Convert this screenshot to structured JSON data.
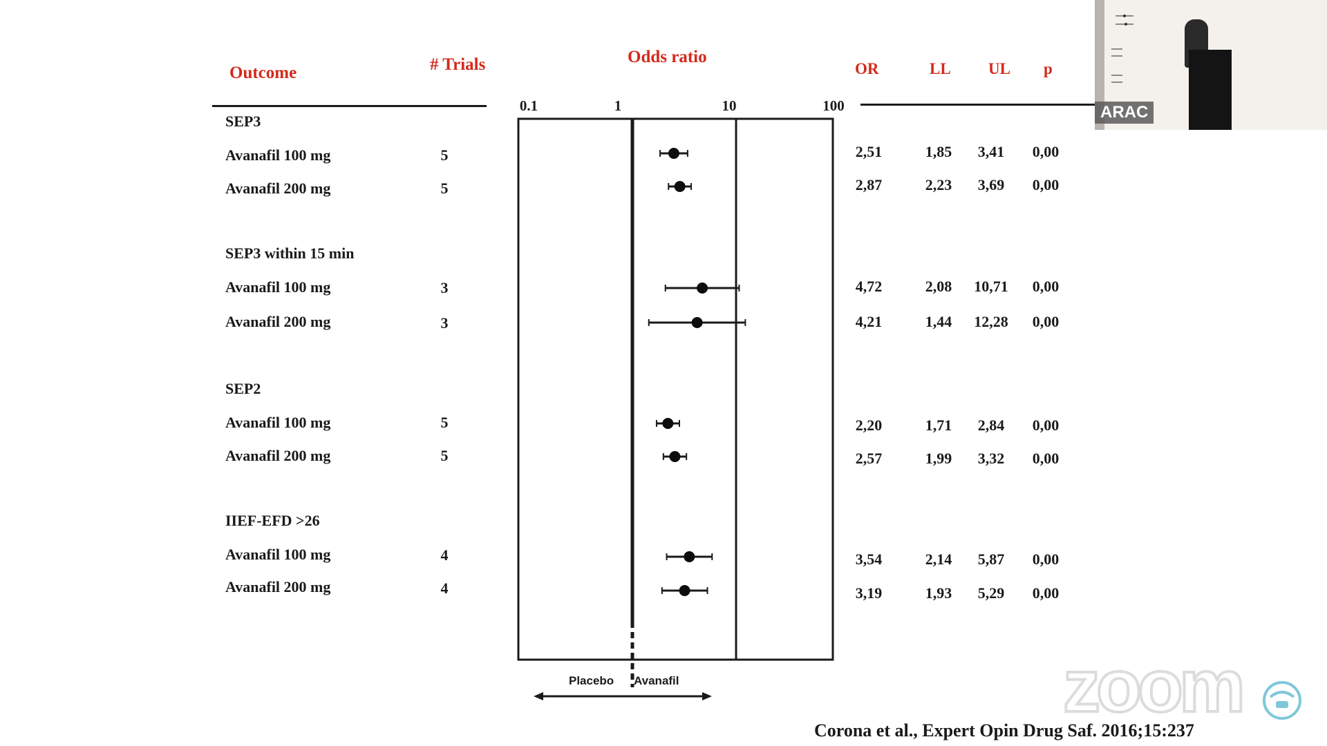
{
  "headers": {
    "outcome": "Outcome",
    "trials": "# Trials",
    "odds_ratio": "Odds ratio",
    "or": "OR",
    "ll": "LL",
    "ul": "UL",
    "p": "p"
  },
  "colors": {
    "header": "#d42a1c",
    "ink": "#1a1a1a"
  },
  "chart_data": {
    "type": "forest",
    "scale": "log",
    "xlim": [
      0.1,
      100
    ],
    "x_ticks": [
      "0.1",
      "1",
      "10",
      "100"
    ],
    "reference_line": 1,
    "direction_labels": {
      "left": "Placebo",
      "right": "Avanafil"
    },
    "groups": [
      {
        "name": "SEP3",
        "rows": [
          {
            "label": "Avanafil 100 mg",
            "trials": "5",
            "or": 2.51,
            "ll": 1.85,
            "ul": 3.41,
            "or_text": "2,51",
            "ll_text": "1,85",
            "ul_text": "3,41",
            "p_text": "0,00"
          },
          {
            "label": "Avanafil 200 mg",
            "trials": "5",
            "or": 2.87,
            "ll": 2.23,
            "ul": 3.69,
            "or_text": "2,87",
            "ll_text": "2,23",
            "ul_text": "3,69",
            "p_text": "0,00"
          }
        ]
      },
      {
        "name": "SEP3 within 15 min",
        "rows": [
          {
            "label": "Avanafil 100 mg",
            "trials": "3",
            "or": 4.72,
            "ll": 2.08,
            "ul": 10.71,
            "or_text": "4,72",
            "ll_text": "2,08",
            "ul_text": "10,71",
            "p_text": "0,00"
          },
          {
            "label": "Avanafil 200 mg",
            "trials": "3",
            "or": 4.21,
            "ll": 1.44,
            "ul": 12.28,
            "or_text": "4,21",
            "ll_text": "1,44",
            "ul_text": "12,28",
            "p_text": "0,00"
          }
        ]
      },
      {
        "name": "SEP2",
        "rows": [
          {
            "label": "Avanafil 100 mg",
            "trials": "5",
            "or": 2.2,
            "ll": 1.71,
            "ul": 2.84,
            "or_text": "2,20",
            "ll_text": "1,71",
            "ul_text": "2,84",
            "p_text": "0,00"
          },
          {
            "label": "Avanafil 200 mg",
            "trials": "5",
            "or": 2.57,
            "ll": 1.99,
            "ul": 3.32,
            "or_text": "2,57",
            "ll_text": "1,99",
            "ul_text": "3,32",
            "p_text": "0,00"
          }
        ]
      },
      {
        "name": "IIEF-EFD >26",
        "rows": [
          {
            "label": "Avanafil 100 mg",
            "trials": "4",
            "or": 3.54,
            "ll": 2.14,
            "ul": 5.87,
            "or_text": "3,54",
            "ll_text": "2,14",
            "ul_text": "5,87",
            "p_text": "0,00"
          },
          {
            "label": "Avanafil 200 mg",
            "trials": "4",
            "or": 3.19,
            "ll": 1.93,
            "ul": 5.29,
            "or_text": "3,19",
            "ll_text": "1,93",
            "ul_text": "5,29",
            "p_text": "0,00"
          }
        ]
      }
    ]
  },
  "citation": "Corona et al., Expert Opin Drug Saf. 2016;15:237",
  "video": {
    "participant_label": "ARAC",
    "logo_icon": "zoom-watermark-icon",
    "corner_icon": "conference-logo-icon"
  },
  "watermark": "zoom"
}
